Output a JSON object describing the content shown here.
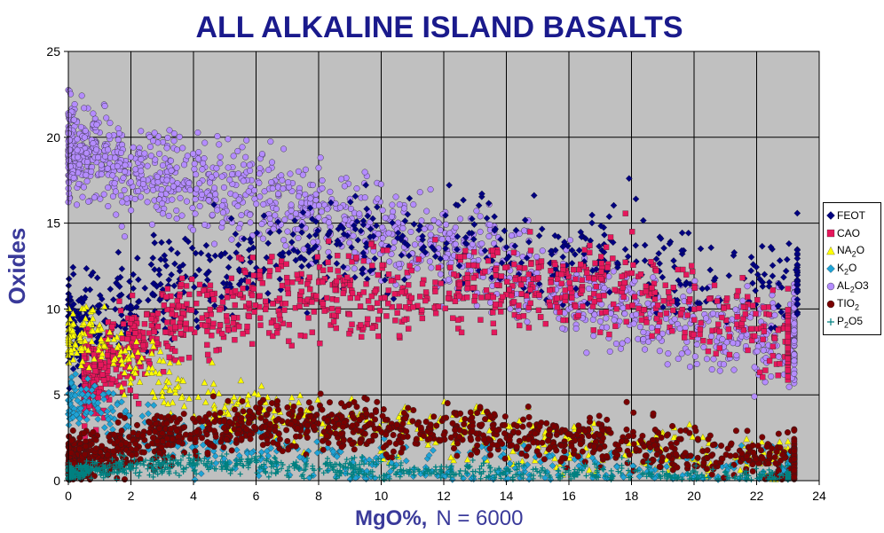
{
  "chart_data": {
    "type": "scatter",
    "title": "ALL ALKALINE ISLAND BASALTS",
    "xlabel_main": "MgO%",
    "xlabel_sep": ",",
    "xlabel_n": "N = 6000",
    "ylabel": "Oxides",
    "xlim": [
      0,
      24
    ],
    "ylim": [
      0,
      25
    ],
    "xticks": [
      "0",
      "2",
      "4",
      "6",
      "8",
      "10",
      "12",
      "14",
      "16",
      "18",
      "20",
      "22",
      "24"
    ],
    "yticks": [
      "0",
      "5",
      "10",
      "15",
      "20",
      "25"
    ],
    "grid": true,
    "plot_background": "#c0c0c0",
    "legend_position": "right",
    "series": [
      {
        "name": "FEOT",
        "legend": {
          "main": "FEOT",
          "sub": "",
          "tail": ""
        },
        "color": "#000080",
        "marker": "diamond",
        "trend": [
          [
            0,
            9
          ],
          [
            2,
            10.5
          ],
          [
            4,
            12
          ],
          [
            6,
            12.5
          ],
          [
            8,
            13.5
          ],
          [
            10,
            14
          ],
          [
            12,
            14
          ],
          [
            14,
            13.5
          ],
          [
            16,
            13
          ],
          [
            18,
            12.5
          ],
          [
            20,
            12
          ],
          [
            22,
            12
          ],
          [
            23.2,
            12
          ]
        ],
        "spread": 1.8,
        "x_range": [
          0,
          23.3
        ]
      },
      {
        "name": "CAO",
        "legend": {
          "main": "CAO",
          "sub": "",
          "tail": ""
        },
        "color": "#e6175c",
        "marker": "square",
        "trend": [
          [
            0,
            5
          ],
          [
            2,
            8
          ],
          [
            4,
            9.5
          ],
          [
            6,
            10.5
          ],
          [
            8,
            10.8
          ],
          [
            10,
            10.8
          ],
          [
            12,
            11
          ],
          [
            14,
            11.5
          ],
          [
            16,
            11.5
          ],
          [
            18,
            11
          ],
          [
            20,
            10
          ],
          [
            22,
            9
          ],
          [
            23,
            8
          ]
        ],
        "spread": 1.6,
        "x_range": [
          0.5,
          23
        ]
      },
      {
        "name": "NA2O",
        "legend": {
          "main": "NA",
          "sub": "2",
          "tail": "O"
        },
        "color": "#ffff00",
        "marker": "triangle",
        "trend": [
          [
            0,
            8.5
          ],
          [
            1,
            8.5
          ],
          [
            2,
            7
          ],
          [
            4,
            5
          ],
          [
            6,
            4
          ],
          [
            8,
            3.5
          ],
          [
            10,
            3
          ],
          [
            12,
            2.8
          ],
          [
            14,
            2.5
          ],
          [
            16,
            2.3
          ],
          [
            18,
            2
          ],
          [
            20,
            1.7
          ],
          [
            22,
            1.4
          ],
          [
            23,
            1.2
          ]
        ],
        "spread": 1.0,
        "x_range": [
          0,
          23
        ]
      },
      {
        "name": "K2O",
        "legend": {
          "main": "K",
          "sub": "2",
          "tail": "O"
        },
        "color": "#1fa3d6",
        "marker": "diamond",
        "trend": [
          [
            0,
            4.5
          ],
          [
            1,
            4.5
          ],
          [
            2,
            3.5
          ],
          [
            4,
            2
          ],
          [
            6,
            1.5
          ],
          [
            8,
            1.2
          ],
          [
            10,
            1
          ],
          [
            12,
            0.9
          ],
          [
            14,
            0.8
          ],
          [
            16,
            0.7
          ],
          [
            18,
            0.6
          ],
          [
            20,
            0.5
          ],
          [
            22,
            0.4
          ],
          [
            23,
            0.3
          ]
        ],
        "spread": 1.0,
        "x_range": [
          0,
          23
        ]
      },
      {
        "name": "AL2O3",
        "legend": {
          "main": "AL",
          "sub": "2",
          "tail": "O3"
        },
        "color": "#b48cff",
        "marker": "circle",
        "trend": [
          [
            0,
            19.5
          ],
          [
            2,
            18
          ],
          [
            4,
            17.5
          ],
          [
            6,
            16.5
          ],
          [
            8,
            15.5
          ],
          [
            10,
            14.5
          ],
          [
            12,
            13.5
          ],
          [
            14,
            12.5
          ],
          [
            16,
            11
          ],
          [
            18,
            10
          ],
          [
            20,
            9
          ],
          [
            22,
            8.5
          ],
          [
            23,
            8.5
          ]
        ],
        "spread": 1.7,
        "x_range": [
          0,
          23.2
        ]
      },
      {
        "name": "TIO2",
        "legend": {
          "main": "TIO",
          "sub": "2",
          "tail": ""
        },
        "color": "#7a0000",
        "marker": "circle",
        "trend": [
          [
            0,
            1.2
          ],
          [
            2,
            2
          ],
          [
            4,
            2.8
          ],
          [
            6,
            3.3
          ],
          [
            8,
            3.3
          ],
          [
            10,
            3.1
          ],
          [
            12,
            2.9
          ],
          [
            14,
            2.7
          ],
          [
            16,
            2.5
          ],
          [
            18,
            2
          ],
          [
            20,
            1.7
          ],
          [
            22,
            1.4
          ],
          [
            23,
            1.2
          ]
        ],
        "spread": 0.9,
        "x_range": [
          0,
          23.2
        ]
      },
      {
        "name": "P2O5",
        "legend": {
          "main": "P",
          "sub": "2",
          "tail": "O5"
        },
        "color": "#008080",
        "marker": "plus",
        "trend": [
          [
            0,
            0.5
          ],
          [
            2,
            0.8
          ],
          [
            4,
            1
          ],
          [
            6,
            0.9
          ],
          [
            8,
            0.8
          ],
          [
            10,
            0.7
          ],
          [
            12,
            0.6
          ],
          [
            14,
            0.5
          ],
          [
            16,
            0.4
          ],
          [
            18,
            0.35
          ],
          [
            20,
            0.3
          ],
          [
            22,
            0.25
          ],
          [
            23,
            0.2
          ]
        ],
        "spread": 0.35,
        "x_range": [
          0,
          23
        ]
      }
    ]
  }
}
